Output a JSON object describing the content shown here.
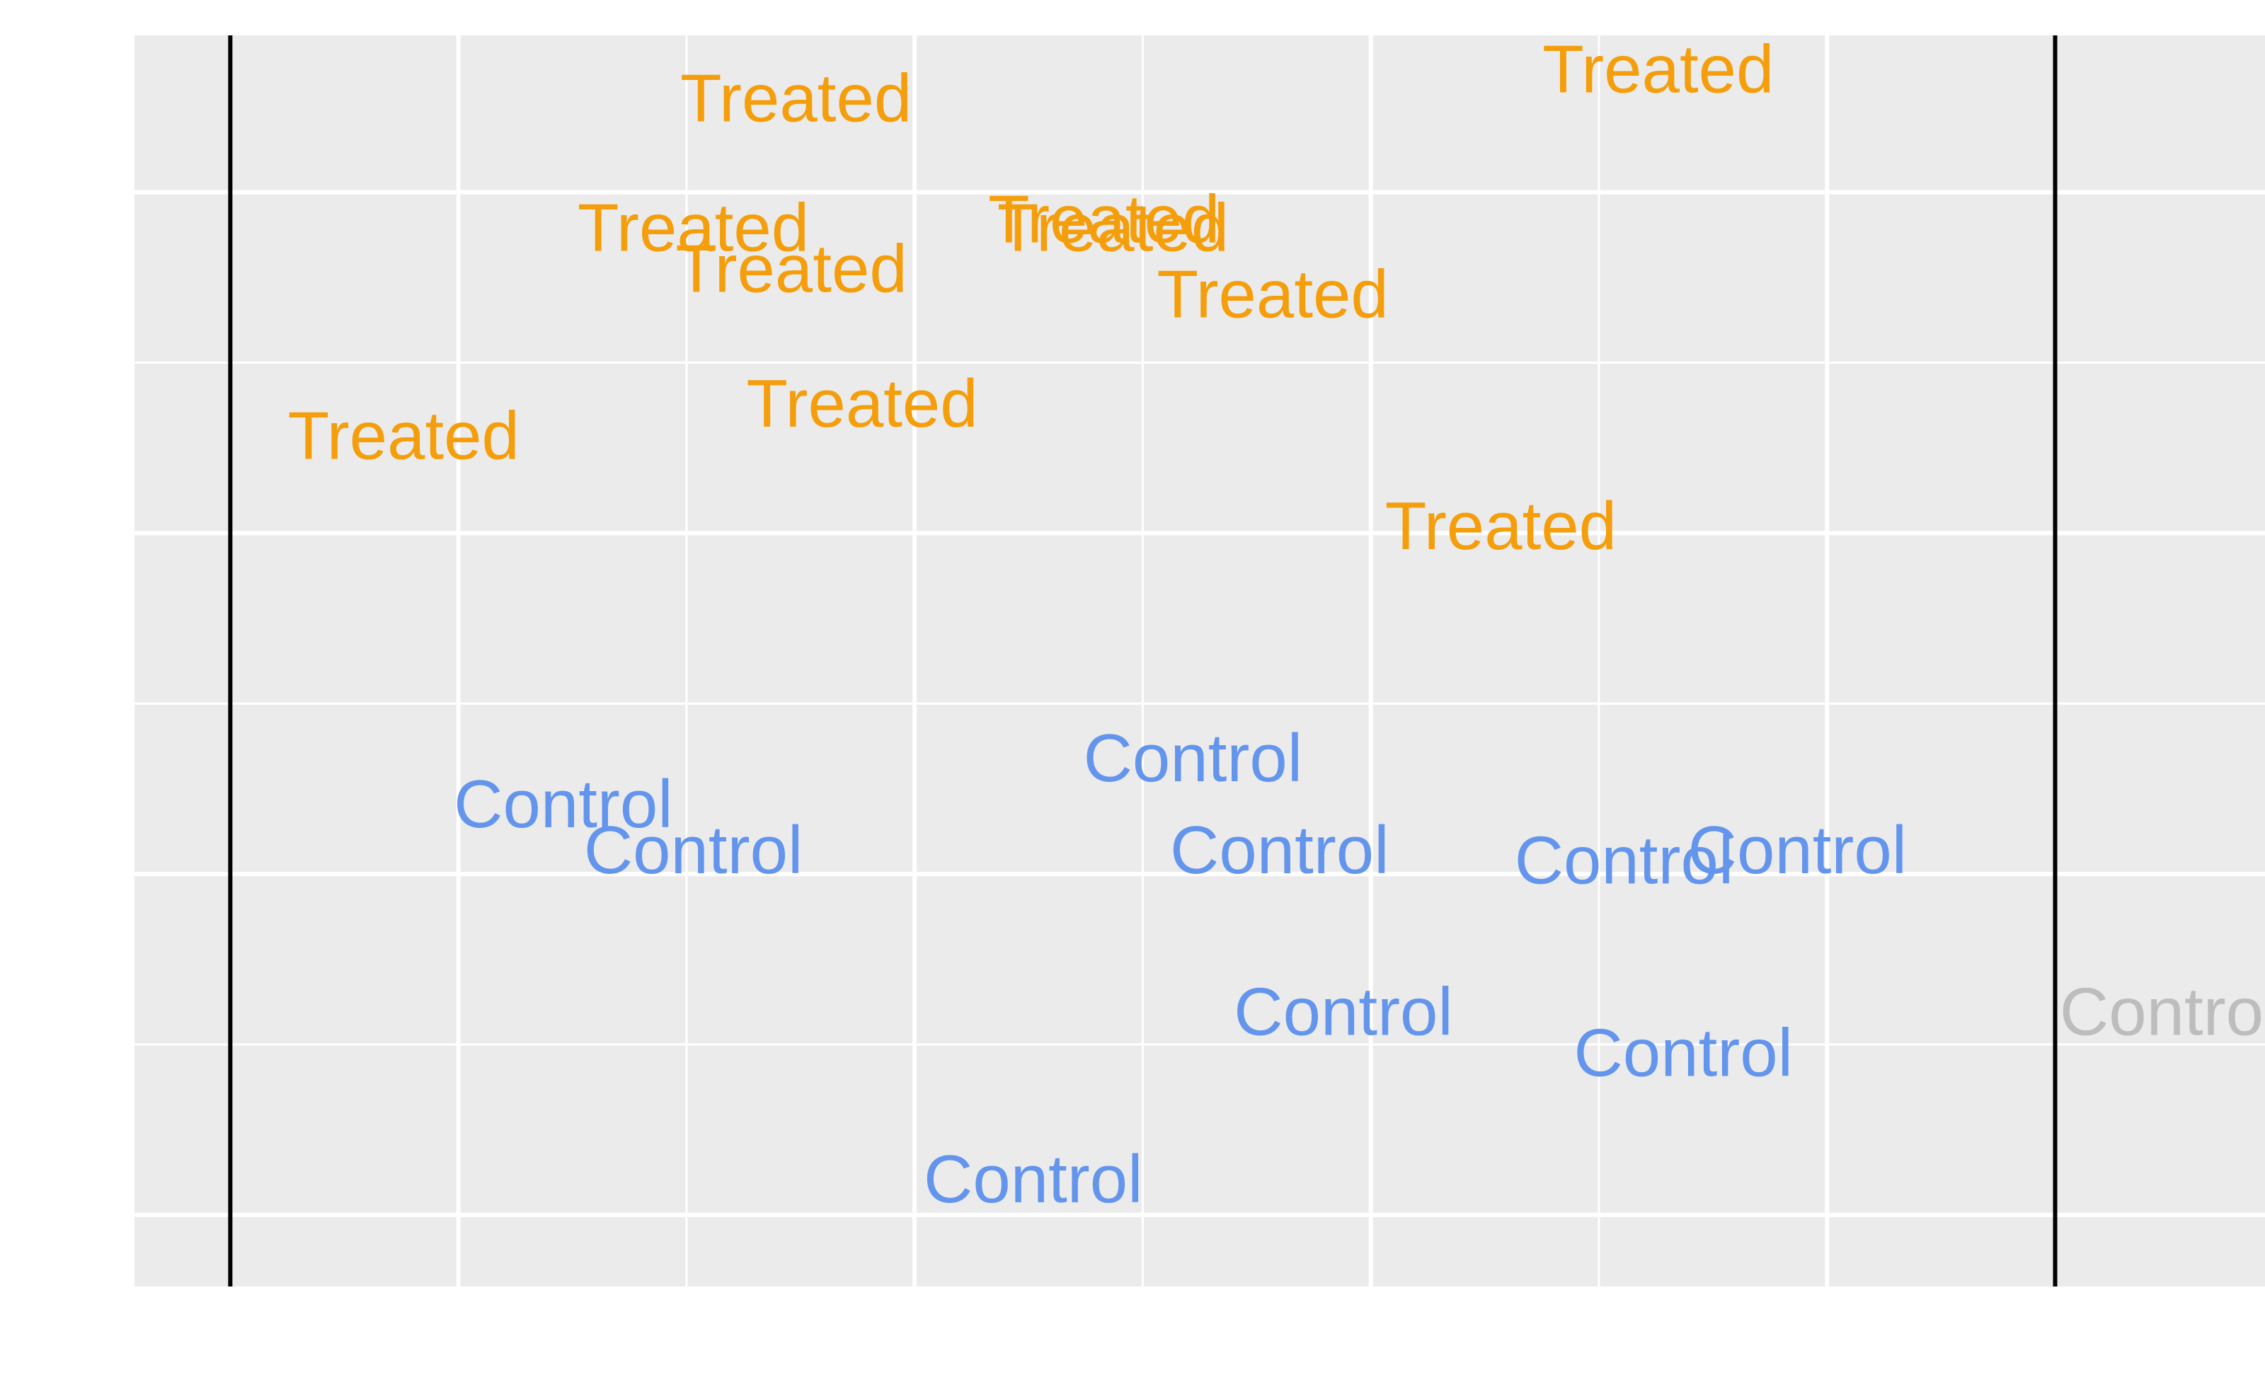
{
  "chart_data": {
    "type": "scatter",
    "title": "",
    "xlabel": "",
    "ylabel": "",
    "xlim": [
      -0.42,
      8.92
    ],
    "ylim": [
      -0.42,
      6.92
    ],
    "grid": true,
    "x_major_ticks": [
      1,
      3,
      5,
      7
    ],
    "x_minor_ticks": [
      0,
      2,
      4,
      6,
      8
    ],
    "y_major_ticks": [
      0,
      2,
      4,
      6
    ],
    "y_minor_ticks": [
      1,
      3,
      5
    ],
    "reference_lines_x": [
      0,
      8
    ],
    "colors": {
      "panel": "#ebebeb",
      "grid": "#ffffff",
      "reference_line": "#000000",
      "Treated": "#f59e0b",
      "Control": "#6495ed",
      "Control_outside": "#bdbdbd"
    },
    "series": [
      {
        "name": "Treated",
        "points": [
          {
            "x": 0.76,
            "y": 4.57,
            "label": "Treated"
          },
          {
            "x": 2.48,
            "y": 6.55,
            "label": "Treated"
          },
          {
            "x": 2.03,
            "y": 5.79,
            "label": "Treated"
          },
          {
            "x": 2.46,
            "y": 5.55,
            "label": "Treated"
          },
          {
            "x": 2.77,
            "y": 4.76,
            "label": "Treated"
          },
          {
            "x": 3.83,
            "y": 5.84,
            "label": "Treated"
          },
          {
            "x": 3.87,
            "y": 5.79,
            "label": "Treated"
          },
          {
            "x": 4.57,
            "y": 5.4,
            "label": "Treated"
          },
          {
            "x": 5.57,
            "y": 4.04,
            "label": "Treated"
          },
          {
            "x": 6.26,
            "y": 6.72,
            "label": "Treated"
          }
        ]
      },
      {
        "name": "Control",
        "points": [
          {
            "x": 1.46,
            "y": 2.41,
            "label": "Control"
          },
          {
            "x": 2.03,
            "y": 2.14,
            "label": "Control"
          },
          {
            "x": 4.22,
            "y": 2.68,
            "label": "Control"
          },
          {
            "x": 4.6,
            "y": 2.14,
            "label": "Control"
          },
          {
            "x": 6.11,
            "y": 2.08,
            "label": "Control"
          },
          {
            "x": 6.87,
            "y": 2.14,
            "label": "Control"
          },
          {
            "x": 4.88,
            "y": 1.19,
            "label": "Control"
          },
          {
            "x": 6.37,
            "y": 0.95,
            "label": "Control"
          },
          {
            "x": 3.52,
            "y": 0.21,
            "label": "Control"
          },
          {
            "x": 8.5,
            "y": 1.19,
            "label": "Control",
            "outside_reference": true
          }
        ]
      }
    ]
  }
}
